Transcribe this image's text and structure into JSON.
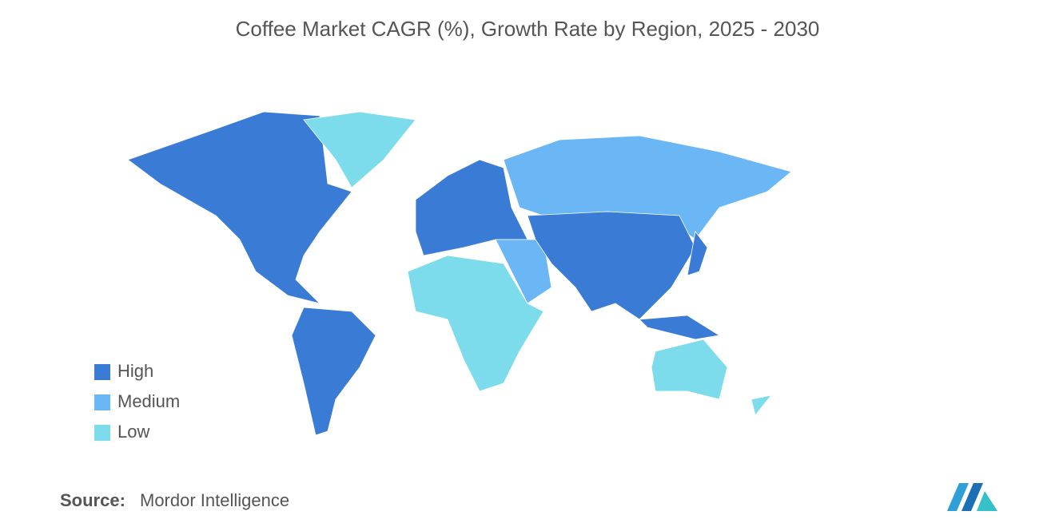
{
  "title": "Coffee Market CAGR (%), Growth Rate by Region, 2025 - 2030",
  "legend": [
    {
      "label": "High",
      "color": "#3a7bd5"
    },
    {
      "label": "Medium",
      "color": "#6bb6f5"
    },
    {
      "label": "Low",
      "color": "#7ddcec"
    }
  ],
  "source": {
    "label": "Source:",
    "text": "Mordor Intelligence"
  }
}
